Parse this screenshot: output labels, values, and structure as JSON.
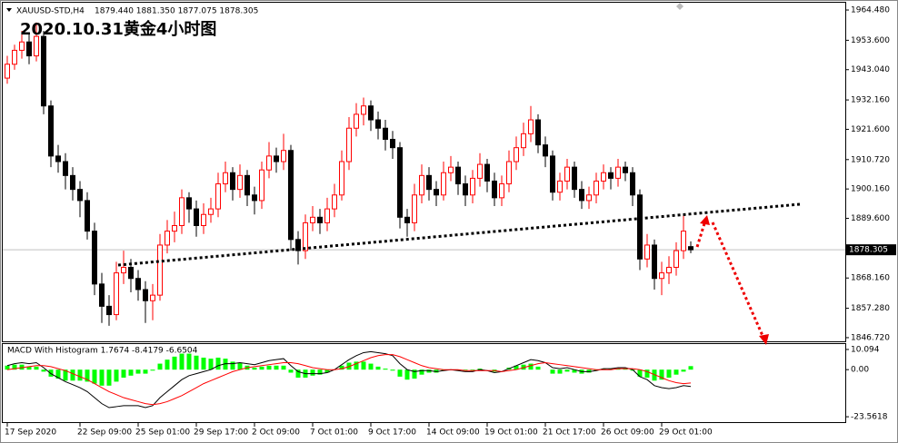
{
  "chart_data": [
    {
      "type": "candlestick",
      "symbol": "XAUUSD-STD,H4",
      "ohlc_text": "1879.440 1881.350 1877.075 1878.305",
      "title": "2020.10.31黄金4小时图",
      "categories": [
        "17 Sep 2020",
        null,
        null,
        null,
        null,
        null,
        null,
        null,
        null,
        null,
        "22 Sep 09:00",
        null,
        null,
        null,
        null,
        null,
        null,
        null,
        "25 Sep 01:00",
        null,
        null,
        null,
        null,
        null,
        null,
        null,
        "29 Sep 17:00",
        null,
        null,
        null,
        null,
        null,
        null,
        null,
        "2 Oct 09:00",
        null,
        null,
        null,
        null,
        null,
        null,
        null,
        "7 Oct 01:00",
        null,
        null,
        null,
        null,
        null,
        null,
        null,
        "9 Oct 17:00",
        null,
        null,
        null,
        null,
        null,
        null,
        null,
        "14 Oct 09:00",
        null,
        null,
        null,
        null,
        null,
        null,
        null,
        "19 Oct 01:00",
        null,
        null,
        null,
        null,
        null,
        null,
        null,
        "21 Oct 17:00",
        null,
        null,
        null,
        null,
        null,
        null,
        null,
        "26 Oct 09:00",
        null,
        null,
        null,
        null,
        null,
        null,
        null,
        "29 Oct 01:00",
        null,
        null,
        null,
        null
      ],
      "open": [
        1940,
        1945,
        1950,
        1953,
        1948,
        1955,
        1930,
        1912,
        1910,
        1905,
        1900,
        1896,
        1885,
        1866,
        1858,
        1855,
        1870,
        1872,
        1868,
        1864,
        1860,
        1862,
        1880,
        1885,
        1887,
        1897,
        1893,
        1887,
        1891,
        1893,
        1902,
        1906,
        1900,
        1905,
        1898,
        1896,
        1907,
        1912,
        1910,
        1914,
        1882,
        1878,
        1888,
        1890,
        1888,
        1893,
        1898,
        1910,
        1922,
        1927,
        1930,
        1925,
        1922,
        1918,
        1915,
        1890,
        1888,
        1898,
        1905,
        1900,
        1898,
        1906,
        1908,
        1902,
        1898,
        1904,
        1909,
        1903,
        1897,
        1902,
        1910,
        1915,
        1920,
        1925,
        1916,
        1912,
        1899,
        1903,
        1908,
        1900,
        1896,
        1898,
        1903,
        1906,
        1904,
        1908,
        1906,
        1898,
        1875,
        1880,
        1868,
        1870,
        1872,
        1878,
        1879.44
      ],
      "high": [
        1948,
        1952,
        1957,
        1956,
        1960,
        1957,
        1932,
        1916,
        1913,
        1908,
        1903,
        1899,
        1888,
        1870,
        1862,
        1874,
        1878,
        1875,
        1871,
        1867,
        1866,
        1884,
        1889,
        1892,
        1900,
        1899,
        1896,
        1895,
        1897,
        1906,
        1910,
        1908,
        1909,
        1907,
        1901,
        1910,
        1917,
        1915,
        1920,
        1916,
        1885,
        1891,
        1894,
        1893,
        1897,
        1902,
        1914,
        1926,
        1931,
        1933,
        1932,
        1928,
        1925,
        1921,
        1917,
        1893,
        1902,
        1909,
        1908,
        1903,
        1910,
        1912,
        1910,
        1905,
        1907,
        1913,
        1911,
        1906,
        1905,
        1914,
        1919,
        1924,
        1930,
        1927,
        1919,
        1914,
        1906,
        1911,
        1910,
        1903,
        1901,
        1906,
        1909,
        1908,
        1911,
        1910,
        1908,
        1900,
        1884,
        1882,
        1874,
        1876,
        1881,
        1891,
        1881.35
      ],
      "low": [
        1938,
        1943,
        1947,
        1945,
        1946,
        1927,
        1908,
        1906,
        1900,
        1896,
        1890,
        1882,
        1862,
        1852,
        1851,
        1853,
        1866,
        1863,
        1860,
        1852,
        1853,
        1860,
        1877,
        1881,
        1884,
        1888,
        1883,
        1884,
        1888,
        1890,
        1899,
        1896,
        1897,
        1894,
        1891,
        1893,
        1904,
        1906,
        1907,
        1878,
        1873,
        1875,
        1885,
        1884,
        1885,
        1890,
        1896,
        1907,
        1919,
        1923,
        1921,
        1918,
        1914,
        1911,
        1886,
        1883,
        1885,
        1895,
        1896,
        1894,
        1896,
        1903,
        1898,
        1894,
        1895,
        1901,
        1899,
        1894,
        1894,
        1899,
        1907,
        1912,
        1917,
        1913,
        1908,
        1896,
        1896,
        1900,
        1897,
        1893,
        1893,
        1895,
        1900,
        1900,
        1901,
        1903,
        1894,
        1871,
        1872,
        1864,
        1862,
        1866,
        1869,
        1875,
        1877.075
      ],
      "close": [
        1945,
        1950,
        1953,
        1948,
        1955,
        1930,
        1912,
        1910,
        1905,
        1900,
        1896,
        1885,
        1866,
        1858,
        1855,
        1870,
        1872,
        1868,
        1864,
        1860,
        1862,
        1880,
        1885,
        1887,
        1897,
        1893,
        1887,
        1891,
        1893,
        1902,
        1906,
        1900,
        1905,
        1898,
        1896,
        1907,
        1912,
        1910,
        1914,
        1882,
        1878,
        1888,
        1890,
        1888,
        1893,
        1898,
        1910,
        1922,
        1927,
        1930,
        1925,
        1922,
        1918,
        1915,
        1890,
        1888,
        1898,
        1905,
        1900,
        1898,
        1906,
        1908,
        1902,
        1898,
        1904,
        1909,
        1903,
        1897,
        1902,
        1910,
        1915,
        1920,
        1925,
        1916,
        1912,
        1899,
        1903,
        1908,
        1900,
        1896,
        1898,
        1903,
        1906,
        1904,
        1908,
        1906,
        1898,
        1875,
        1880,
        1868,
        1870,
        1872,
        1878,
        1885,
        1878.305
      ],
      "up_color": "#ff0000",
      "down_color": "#000000",
      "last_price": 1878.305,
      "ylim": [
        1845.4,
        1967.1
      ],
      "yticks": [
        {
          "value": 1964.48,
          "label": "1964.480"
        },
        {
          "value": 1953.6,
          "label": "1953.600"
        },
        {
          "value": 1943.04,
          "label": "1943.040"
        },
        {
          "value": 1932.16,
          "label": "1932.160"
        },
        {
          "value": 1921.6,
          "label": "1921.600"
        },
        {
          "value": 1910.72,
          "label": "1910.720"
        },
        {
          "value": 1900.16,
          "label": "1900.160"
        },
        {
          "value": 1889.6,
          "label": "1889.600"
        },
        {
          "value": 1868.16,
          "label": "1868.160"
        },
        {
          "value": 1857.28,
          "label": "1857.280"
        },
        {
          "value": 1846.72,
          "label": "1846.720"
        }
      ]
    },
    {
      "type": "macd",
      "indicator_label": "MACD With Histogram 1.7674 -8.4179 -6.6504",
      "macd": [
        2,
        3,
        3.5,
        3,
        3.5,
        1,
        -2,
        -4,
        -6,
        -7.5,
        -9,
        -11,
        -14,
        -17,
        -19,
        -18.5,
        -18,
        -18,
        -18,
        -19,
        -18,
        -14,
        -11,
        -8,
        -5,
        -3,
        -2,
        -1,
        0,
        2,
        3,
        3,
        3.5,
        3,
        2.5,
        3.5,
        4.5,
        5,
        5.5,
        2,
        -1,
        -2,
        -2,
        -2,
        -1.5,
        0,
        2.5,
        5,
        7,
        8.5,
        9,
        8.5,
        8,
        7,
        3,
        0,
        -1,
        -0.5,
        -0.5,
        -1,
        -0.5,
        0,
        -0.5,
        -1,
        -1,
        0,
        -0.5,
        -1.5,
        -1,
        0.5,
        2,
        3.5,
        5,
        4.5,
        3.5,
        1,
        0.5,
        1,
        0,
        -1,
        -1,
        -0.5,
        0.5,
        0.5,
        1,
        1,
        0,
        -3.5,
        -5,
        -8,
        -9,
        -9.5,
        -9,
        -8,
        -8.4179
      ],
      "signal": [
        0,
        0.5,
        1,
        1.5,
        2,
        2,
        1.5,
        0.5,
        -0.5,
        -2,
        -3.5,
        -5,
        -7,
        -9,
        -11,
        -12.5,
        -14,
        -15,
        -16,
        -17,
        -17.5,
        -17,
        -16,
        -14.5,
        -13,
        -11,
        -9,
        -7,
        -5.5,
        -4,
        -2.5,
        -1,
        0,
        1,
        1.5,
        2,
        2.5,
        3,
        3.5,
        3.5,
        3,
        2,
        1,
        0.5,
        0,
        0,
        0.5,
        1.5,
        3,
        4.5,
        6,
        7,
        7.5,
        7.5,
        6.5,
        5,
        3.5,
        2,
        1,
        0.5,
        0,
        0,
        0,
        -0.5,
        -0.5,
        -0.5,
        -0.5,
        -0.5,
        -1,
        -0.5,
        0,
        1,
        2,
        3,
        3.5,
        3,
        2.5,
        2,
        1.5,
        1,
        0.5,
        0,
        0,
        0,
        0.5,
        0.5,
        0.5,
        0,
        -1,
        -2.5,
        -4,
        -5.5,
        -6.5,
        -7,
        -6.6504
      ],
      "histogram": [
        2,
        2.5,
        2.5,
        1.5,
        1.5,
        -1,
        -3.5,
        -4.5,
        -5.5,
        -5.5,
        -5.5,
        -6,
        -7,
        -8,
        -8,
        -6,
        -4,
        -3,
        -2,
        -2,
        -0.5,
        3,
        5,
        6.5,
        8,
        8,
        7,
        6,
        5.5,
        6,
        5.5,
        4,
        3.5,
        2,
        1,
        1.5,
        2,
        2,
        2,
        -1.5,
        -4,
        -4,
        -3,
        -2.5,
        -1.5,
        0,
        2,
        3.5,
        4,
        4,
        3,
        1.5,
        0.5,
        -0.5,
        -3.5,
        -5,
        -4.5,
        -2.5,
        -1.5,
        -1.5,
        -0.5,
        0,
        -0.5,
        -0.5,
        -0.5,
        0.5,
        0,
        -1,
        0,
        1,
        2,
        2.5,
        3,
        1.5,
        0,
        -2,
        -2,
        -1,
        -1.5,
        -2,
        -1.5,
        -0.5,
        0.5,
        0.5,
        0.5,
        0.5,
        -0.5,
        -3.5,
        -4,
        -5.5,
        -5,
        -4,
        -2.5,
        -1,
        1.7674
      ],
      "macd_color": "#000000",
      "signal_color": "#ff0000",
      "histogram_color": "#00ff00",
      "ylim": [
        -26.7,
        12.8
      ],
      "yticks": [
        {
          "value": 10.094,
          "label": "10.094"
        },
        {
          "value": 0,
          "label": "0.00"
        },
        {
          "value": -23.5618,
          "label": "-23.5618"
        }
      ]
    }
  ]
}
